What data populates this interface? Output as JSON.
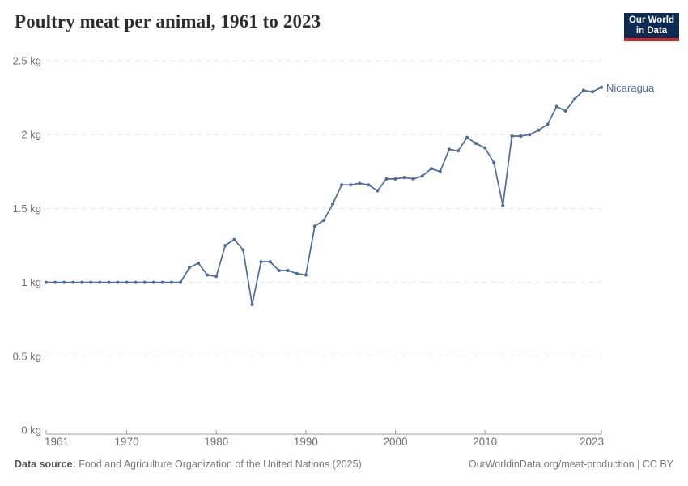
{
  "header": {
    "title": "Poultry meat per animal, 1961 to 2023",
    "logo_line1": "Our World",
    "logo_line2": "in Data"
  },
  "chart_data": {
    "type": "line",
    "title": "Poultry meat per animal, 1961 to 2023",
    "xlabel": "",
    "ylabel": "",
    "unit": "kg",
    "xlim": [
      1961,
      2023
    ],
    "ylim": [
      0,
      2.5
    ],
    "grid": "horizontal-dashed",
    "x_ticks": [
      1961,
      1970,
      1980,
      1990,
      2000,
      2010,
      2023
    ],
    "y_ticks": [
      {
        "value": 0,
        "label": "0 kg"
      },
      {
        "value": 0.5,
        "label": "0.5 kg"
      },
      {
        "value": 1,
        "label": "1 kg"
      },
      {
        "value": 1.5,
        "label": "1.5 kg"
      },
      {
        "value": 2,
        "label": "2 kg"
      },
      {
        "value": 2.5,
        "label": "2.5 kg"
      }
    ],
    "legend_position": "end-of-line-label",
    "series": [
      {
        "name": "Nicaragua",
        "color": "#4c6a9c",
        "x": [
          1961,
          1962,
          1963,
          1964,
          1965,
          1966,
          1967,
          1968,
          1969,
          1970,
          1971,
          1972,
          1973,
          1974,
          1975,
          1976,
          1977,
          1978,
          1979,
          1980,
          1981,
          1982,
          1983,
          1984,
          1985,
          1986,
          1987,
          1988,
          1989,
          1990,
          1991,
          1992,
          1993,
          1994,
          1995,
          1996,
          1997,
          1998,
          1999,
          2000,
          2001,
          2002,
          2003,
          2004,
          2005,
          2006,
          2007,
          2008,
          2009,
          2010,
          2011,
          2012,
          2013,
          2014,
          2015,
          2016,
          2017,
          2018,
          2019,
          2020,
          2021,
          2022,
          2023
        ],
        "values": [
          1,
          1,
          1,
          1,
          1,
          1,
          1,
          1,
          1,
          1,
          1,
          1,
          1,
          1,
          1,
          1,
          1.1,
          1.13,
          1.05,
          1.04,
          1.25,
          1.29,
          1.22,
          0.85,
          1.14,
          1.14,
          1.08,
          1.08,
          1.06,
          1.05,
          1.38,
          1.42,
          1.53,
          1.66,
          1.66,
          1.67,
          1.66,
          1.62,
          1.7,
          1.7,
          1.71,
          1.7,
          1.72,
          1.77,
          1.75,
          1.9,
          1.89,
          1.98,
          1.94,
          1.91,
          1.81,
          1.52,
          1.99,
          1.99,
          2.0,
          2.03,
          2.07,
          2.19,
          2.16,
          2.24,
          2.3,
          2.29,
          2.32
        ]
      }
    ],
    "colors": {
      "line": "#4c6a9c",
      "grid": "#e2e2e2",
      "axis": "#9a9a9a",
      "tick_text": "#6e6e6e"
    }
  },
  "footer": {
    "source_label": "Data source:",
    "source_text": "Food and Agriculture Organization of the United Nations (2025)",
    "credit": "OurWorldinData.org/meat-production | CC BY"
  }
}
